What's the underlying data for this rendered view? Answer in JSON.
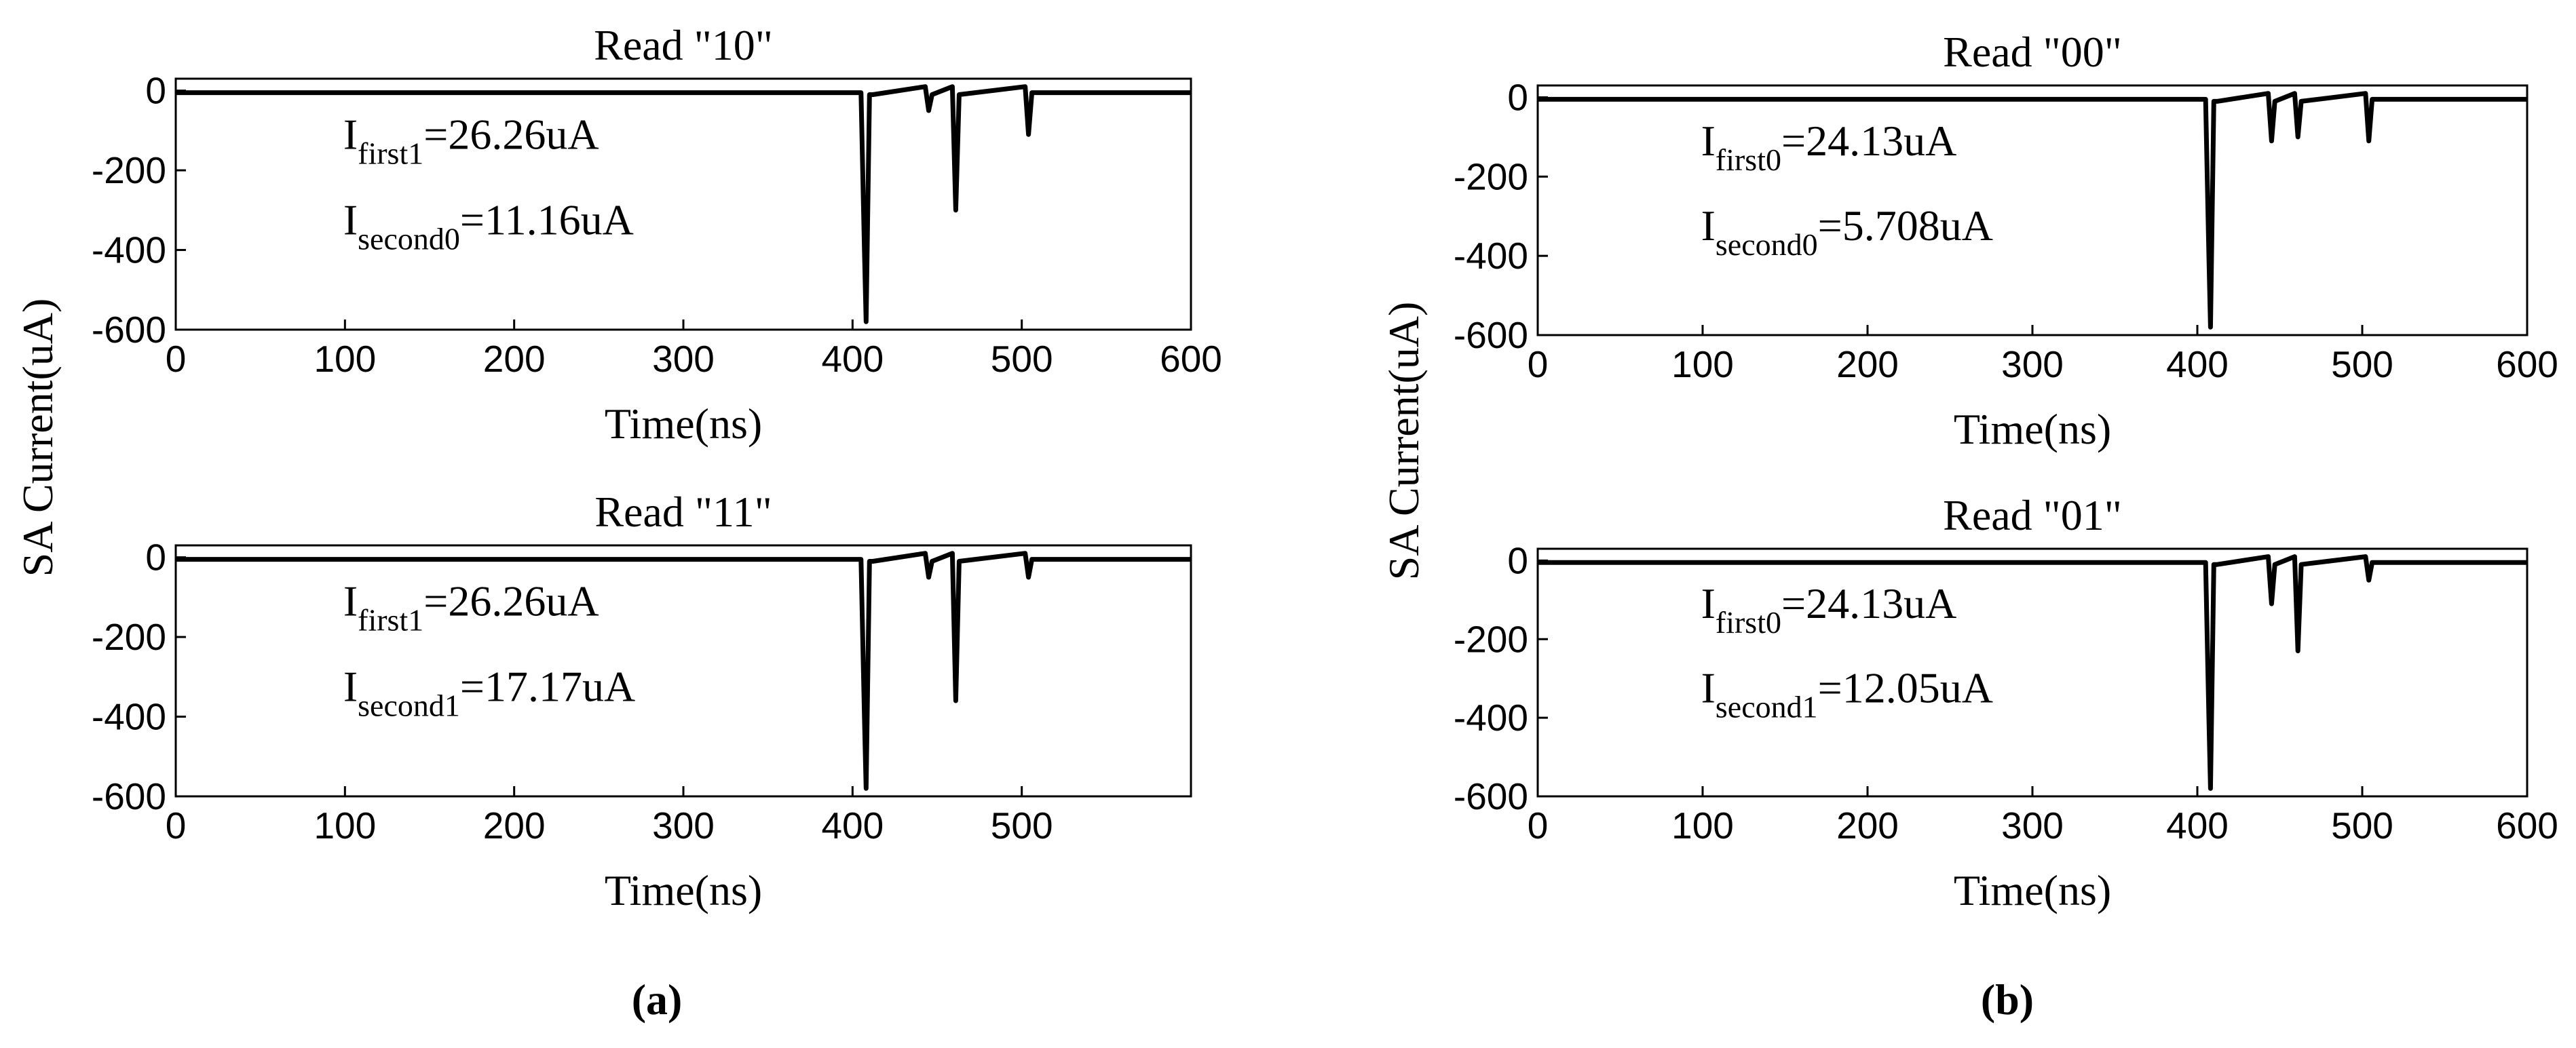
{
  "chart_data": [
    {
      "type": "line",
      "title": "Read \"10\"",
      "xlabel": "Time(ns)",
      "xlim": [
        0,
        600
      ],
      "xticks": [
        0,
        100,
        200,
        300,
        400,
        500,
        600
      ],
      "ylim": [
        -600,
        30
      ],
      "yticks": [
        -600,
        -400,
        -200,
        0
      ],
      "x": [
        0,
        405,
        407,
        408,
        410,
        412,
        443,
        445,
        447,
        459,
        461,
        463,
        502,
        504,
        506,
        600
      ],
      "series": [
        {
          "color": "#000000",
          "values": [
            -5,
            -5,
            -400,
            -580,
            -10,
            -10,
            10,
            -50,
            -10,
            10,
            -300,
            -10,
            10,
            -110,
            -5,
            -5
          ]
        }
      ],
      "annotations": [
        {
          "text": "I",
          "sub": "first1",
          "rest": "=26.26uA"
        },
        {
          "text": "I",
          "sub": "second0",
          "rest": "=11.16uA"
        }
      ]
    },
    {
      "type": "line",
      "title": "Read \"11\"",
      "xlabel": "Time(ns)",
      "xlim": [
        0,
        600
      ],
      "xticks": [
        0,
        100,
        200,
        300,
        400,
        500
      ],
      "ylim": [
        -600,
        30
      ],
      "yticks": [
        -600,
        -400,
        -200,
        0
      ],
      "x": [
        0,
        405,
        407,
        408,
        410,
        412,
        443,
        445,
        447,
        459,
        461,
        463,
        502,
        504,
        506,
        600
      ],
      "series": [
        {
          "color": "#000000",
          "values": [
            -5,
            -5,
            -400,
            -580,
            -10,
            -10,
            10,
            -50,
            -10,
            10,
            -360,
            -10,
            10,
            -50,
            -5,
            -5
          ]
        }
      ],
      "annotations": [
        {
          "text": "I",
          "sub": "first1",
          "rest": "=26.26uA"
        },
        {
          "text": "I",
          "sub": "second1",
          "rest": "=17.17uA"
        }
      ]
    },
    {
      "type": "line",
      "title": "Read \"00\"",
      "xlabel": "Time(ns)",
      "xlim": [
        0,
        600
      ],
      "xticks": [
        0,
        100,
        200,
        300,
        400,
        500,
        600
      ],
      "ylim": [
        -600,
        30
      ],
      "yticks": [
        -600,
        -400,
        -200,
        0
      ],
      "x": [
        0,
        405,
        407,
        408,
        410,
        412,
        443,
        445,
        447,
        459,
        461,
        463,
        502,
        504,
        506,
        600
      ],
      "series": [
        {
          "color": "#000000",
          "values": [
            -5,
            -5,
            -400,
            -580,
            -10,
            -10,
            10,
            -110,
            -10,
            10,
            -100,
            -10,
            10,
            -110,
            -5,
            -5
          ]
        }
      ],
      "annotations": [
        {
          "text": "I",
          "sub": "first0",
          "rest": "=24.13uA"
        },
        {
          "text": "I",
          "sub": "second0",
          "rest": "=5.708uA"
        }
      ]
    },
    {
      "type": "line",
      "title": "Read \"01\"",
      "xlabel": "Time(ns)",
      "xlim": [
        0,
        600
      ],
      "xticks": [
        0,
        100,
        200,
        300,
        400,
        500,
        600
      ],
      "ylim": [
        -600,
        30
      ],
      "yticks": [
        -600,
        -400,
        -200,
        0
      ],
      "x": [
        0,
        405,
        407,
        408,
        410,
        412,
        443,
        445,
        447,
        459,
        461,
        463,
        502,
        504,
        506,
        600
      ],
      "series": [
        {
          "color": "#000000",
          "values": [
            -5,
            -5,
            -400,
            -580,
            -10,
            -10,
            10,
            -110,
            -10,
            10,
            -230,
            -10,
            10,
            -50,
            -5,
            -5
          ]
        }
      ],
      "annotations": [
        {
          "text": "I",
          "sub": "first0",
          "rest": "=24.13uA"
        },
        {
          "text": "I",
          "sub": "second1",
          "rest": "=12.05uA"
        }
      ]
    }
  ],
  "panels": [
    {
      "label": "(a)",
      "ylabel": "SA Current(uA)"
    },
    {
      "label": "(b)",
      "ylabel": "SA Current(uA)"
    }
  ]
}
